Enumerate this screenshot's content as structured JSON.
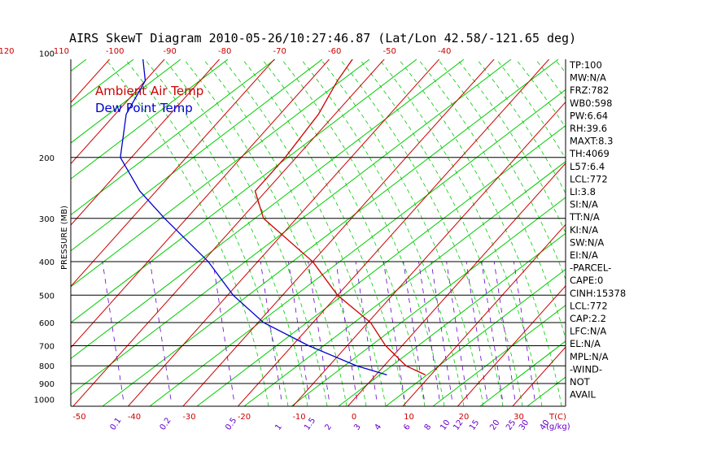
{
  "chart_data": {
    "type": "line",
    "title": "AIRS SkewT Diagram 2010-05-26/10:27:46.87 (Lat/Lon 42.58/-121.65 deg)",
    "ylabel": "PRESSURE (MB)",
    "y_scale": "log",
    "ylim": [
      1100,
      100
    ],
    "pressure_ticks": [
      "100",
      "200",
      "300",
      "400",
      "500",
      "600",
      "700",
      "800",
      "900",
      "1000"
    ],
    "pressure_values": [
      100,
      200,
      300,
      400,
      500,
      600,
      700,
      800,
      900,
      1000
    ],
    "isobar_values": [
      200,
      300,
      400,
      500,
      600,
      700,
      800,
      900
    ],
    "top_temp_ticks": [
      "-120",
      "-110",
      "-100",
      "-90",
      "-80",
      "-70",
      "-60",
      "-50",
      "-40"
    ],
    "bottom_temp_ticks": [
      "-50",
      "-40",
      "-30",
      "-20",
      "-10",
      "0",
      "10",
      "20",
      "30"
    ],
    "bottom_temp_axis_label": "T(C)",
    "mixing_ratio_ticks": [
      "0.1",
      "0.2",
      "0.5",
      "1",
      "1.5",
      "2",
      "3",
      "4",
      "6",
      "8",
      "10",
      "12",
      "15",
      "20",
      "25",
      "30",
      "40"
    ],
    "mixing_ratio_unit": "(g/kg)",
    "legend": [
      "Ambient Air Temp",
      "Dew Point Temp"
    ],
    "colors": {
      "temp": "#cc0000",
      "dew": "#0000cc",
      "isotherm": "#cc0000",
      "dry_adiabat": "#00cc00",
      "moist_adiabat": "#00cc00",
      "mixing_ratio": "#6600cc",
      "isobar": "#000000"
    },
    "series": [
      {
        "name": "Ambient Air Temp",
        "points": [
          {
            "p": 850,
            "t": 9
          },
          {
            "p": 800,
            "t": 4
          },
          {
            "p": 700,
            "t": -3
          },
          {
            "p": 600,
            "t": -9.5
          },
          {
            "p": 500,
            "t": -20
          },
          {
            "p": 400,
            "t": -30
          },
          {
            "p": 300,
            "t": -46
          },
          {
            "p": 250,
            "t": -52
          },
          {
            "p": 200,
            "t": -52
          },
          {
            "p": 150,
            "t": -53
          },
          {
            "p": 120,
            "t": -55
          },
          {
            "p": 100,
            "t": -56
          }
        ]
      },
      {
        "name": "Dew Point Temp",
        "points": [
          {
            "p": 850,
            "t": 2
          },
          {
            "p": 800,
            "t": -5
          },
          {
            "p": 700,
            "t": -17
          },
          {
            "p": 600,
            "t": -29
          },
          {
            "p": 500,
            "t": -39
          },
          {
            "p": 400,
            "t": -49
          },
          {
            "p": 300,
            "t": -64
          },
          {
            "p": 250,
            "t": -73
          },
          {
            "p": 200,
            "t": -82
          },
          {
            "p": 150,
            "t": -88
          },
          {
            "p": 120,
            "t": -90
          },
          {
            "p": 100,
            "t": -95
          }
        ]
      }
    ],
    "indices": [
      "TP:100",
      "MW:N/A",
      "FRZ:782",
      "WB0:598",
      "PW:6.64",
      "RH:39.6",
      "MAXT:8.3",
      "TH:4069",
      "L57:6.4",
      "LCL:772",
      "LI:3.8",
      "SI:N/A",
      "TT:N/A",
      "KI:N/A",
      "SW:N/A",
      "EI:N/A",
      "-PARCEL-",
      "CAPE:0",
      "CINH:15378",
      "LCL:772",
      "CAP:2.2",
      "LFC:N/A",
      "EL:N/A",
      "MPL:N/A",
      "-WIND-",
      "NOT",
      "AVAIL"
    ]
  }
}
